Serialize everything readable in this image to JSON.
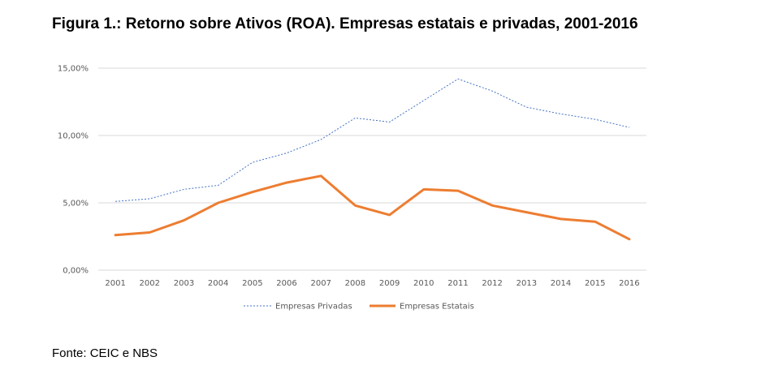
{
  "page": {
    "title": "Figura 1.: Retorno sobre Ativos (ROA). Empresas estatais e privadas, 2001-2016",
    "source": "Fonte: CEIC e NBS"
  },
  "chart_data": {
    "type": "line",
    "title": "Figura 1.: Retorno sobre Ativos (ROA). Empresas estatais e privadas, 2001-2016",
    "xlabel": "",
    "ylabel": "",
    "ylim": [
      0,
      15
    ],
    "yticks": [
      0,
      5,
      10,
      15
    ],
    "ytick_labels": [
      "0,00%",
      "5,00%",
      "10,00%",
      "15,00%"
    ],
    "categories": [
      "2001",
      "2002",
      "2003",
      "2004",
      "2005",
      "2006",
      "2007",
      "2008",
      "2009",
      "2010",
      "2011",
      "2012",
      "2013",
      "2014",
      "2015",
      "2016"
    ],
    "grid": "horizontal",
    "legend_position": "bottom",
    "series": [
      {
        "name": "Empresas Privadas",
        "color": "#4472C4",
        "style": "dotted",
        "values": [
          5.1,
          5.3,
          6.0,
          6.3,
          8.0,
          8.7,
          9.7,
          11.3,
          11.0,
          12.6,
          14.2,
          13.3,
          12.1,
          11.6,
          11.2,
          10.6
        ]
      },
      {
        "name": "Empresas Estatais",
        "color": "#ED7D31",
        "style": "solid",
        "values": [
          2.6,
          2.8,
          3.7,
          5.0,
          5.8,
          6.5,
          7.0,
          4.8,
          4.1,
          6.0,
          5.9,
          4.8,
          4.3,
          3.8,
          3.6,
          2.3
        ]
      }
    ]
  }
}
